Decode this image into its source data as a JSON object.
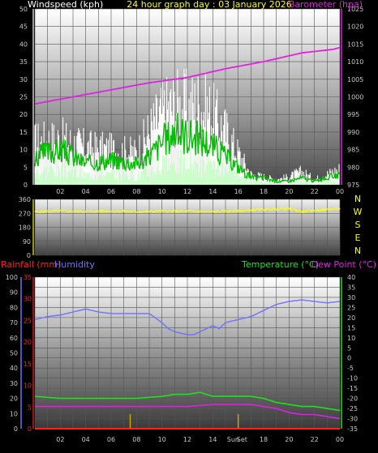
{
  "colors": {
    "background": "#000000",
    "axis_text": "#c8c8c8",
    "windspeed_label": "#ffffff",
    "title": "#ffff00",
    "barometer": "#e020e0",
    "wind_gust": "#ffffff",
    "wind_avg": "#00c000",
    "wind_min": "#c8ffc8",
    "wind_dir": "#ffff00",
    "compass": "#ffff00",
    "rainfall": "#ff2020",
    "humidity": "#7070ff",
    "temperature": "#20e020",
    "dew_point": "#e020e0",
    "sun_marker": "#d0a000"
  },
  "chart_data": [
    {
      "type": "line",
      "title": "24 hour graph day : 03 January 2026",
      "x_tick_labels": [
        "02",
        "04",
        "06",
        "08",
        "10",
        "12",
        "14",
        "16",
        "18",
        "20",
        "22",
        "00"
      ],
      "left_axis": {
        "label": "Windspeed (kph)",
        "range": [
          0,
          50
        ],
        "ticks": [
          "0",
          "5",
          "10",
          "15",
          "20",
          "25",
          "30",
          "35",
          "40",
          "45",
          "50"
        ]
      },
      "right_axis": {
        "label": "Barometer (hpa)",
        "range": [
          975,
          1025
        ],
        "ticks": [
          "975",
          "980",
          "985",
          "990",
          "995",
          "1000",
          "1005",
          "1010",
          "1015",
          "1020",
          "1025"
        ]
      },
      "grid": true,
      "series": [
        {
          "axis": "right",
          "x_hours": [
            0,
            3,
            6,
            9,
            12,
            15,
            18,
            21,
            23.5,
            24
          ],
          "values": [
            998,
            1000,
            1002,
            1004,
            1005.5,
            1008,
            1010,
            1012.5,
            1013.5,
            1014
          ]
        },
        {
          "axis": "left",
          "x_hours": [
            0,
            2,
            4,
            6,
            8,
            9,
            10,
            11,
            12,
            13,
            14,
            15,
            16,
            17,
            18,
            19,
            20,
            21,
            22,
            23,
            24
          ],
          "values": [
            16,
            17,
            14,
            13,
            12,
            20,
            27,
            30,
            29,
            30,
            26,
            20,
            12,
            4,
            3,
            2,
            3,
            5,
            2,
            4,
            6
          ]
        },
        {
          "axis": "left",
          "x_hours": [
            0,
            2,
            4,
            6,
            8,
            9,
            10,
            11,
            12,
            13,
            14,
            15,
            16,
            17,
            18,
            19,
            20,
            21,
            22,
            23,
            24
          ],
          "values": [
            8,
            10,
            6,
            7,
            6,
            8,
            12,
            15,
            14,
            13,
            11,
            8,
            5,
            2,
            2,
            1,
            1,
            2,
            1,
            2,
            3
          ]
        },
        {
          "axis": "left",
          "x_hours": [
            0,
            2,
            4,
            6,
            8,
            9,
            10,
            11,
            12,
            13,
            14,
            15,
            16,
            17,
            18,
            19,
            20,
            21,
            22,
            23,
            24
          ],
          "values": [
            4,
            5,
            3,
            3,
            3,
            4,
            6,
            7,
            7,
            6,
            5,
            4,
            3,
            1,
            1,
            0,
            0,
            1,
            0,
            1,
            1
          ]
        }
      ]
    },
    {
      "type": "scatter",
      "left_axis": {
        "range": [
          0,
          360
        ],
        "ticks": [
          "0",
          "90",
          "180",
          "270",
          "360"
        ]
      },
      "compass_labels": [
        "N",
        "W",
        "S",
        "E",
        "N"
      ],
      "x_hours": [
        0,
        2,
        4,
        6,
        8,
        10,
        12,
        14,
        16,
        18,
        20,
        21,
        22,
        23,
        24
      ],
      "values": [
        280,
        285,
        282,
        286,
        280,
        284,
        283,
        281,
        285,
        295,
        300,
        282,
        288,
        295,
        300
      ]
    },
    {
      "type": "line",
      "x_tick_labels": [
        "02",
        "04",
        "06",
        "08",
        "10",
        "12",
        "14",
        "Sun",
        "Set",
        "18",
        "20",
        "22",
        "00"
      ],
      "left_axis_humidity": {
        "label": "Humidity",
        "range": [
          0,
          100
        ],
        "ticks": [
          "0",
          "10",
          "20",
          "30",
          "40",
          "50",
          "60",
          "70",
          "80",
          "90",
          "100"
        ]
      },
      "left_axis_rainfall": {
        "label": "Rainfall (mm)",
        "range": [
          0,
          35
        ],
        "ticks": [
          "0",
          "5",
          "10",
          "15",
          "20",
          "25",
          "30",
          "35"
        ]
      },
      "right_axis": {
        "label": "Temperature (°C)",
        "label2": "Dew Point (°C)",
        "range": [
          -35,
          40
        ],
        "ticks": [
          "-35",
          "-30",
          "-25",
          "-20",
          "-15",
          "-10",
          "-5",
          "0",
          "5",
          "10",
          "15",
          "20",
          "25",
          "30",
          "35",
          "40"
        ]
      },
      "sun_markers_hours": [
        7.5,
        16
      ],
      "series": [
        {
          "axis": "humidity",
          "x_hours": [
            0,
            1,
            2,
            3,
            4,
            5,
            6,
            7,
            8,
            9,
            10,
            10.5,
            11,
            12,
            12.5,
            13,
            14,
            14.5,
            15,
            16,
            17,
            17.5,
            18,
            19,
            20,
            21,
            22,
            23,
            24
          ],
          "values": [
            72,
            74,
            75,
            77,
            79,
            77,
            76,
            76,
            76,
            76,
            70,
            66,
            64,
            62,
            62,
            64,
            68,
            66,
            70,
            72,
            74,
            76,
            78,
            82,
            84,
            85,
            84,
            83,
            84
          ]
        },
        {
          "axis": "temp",
          "x_hours": [
            0,
            2,
            4,
            6,
            8,
            10,
            11,
            12,
            13,
            14,
            15,
            16,
            17,
            18,
            19,
            20,
            21,
            22,
            23,
            24
          ],
          "values": [
            -19,
            -20,
            -20,
            -20,
            -20,
            -19,
            -18,
            -18,
            -17,
            -19,
            -19,
            -19,
            -19,
            -20,
            -22,
            -23,
            -24,
            -24,
            -25,
            -26
          ]
        },
        {
          "axis": "temp",
          "x_hours": [
            0,
            2,
            4,
            6,
            8,
            10,
            12,
            14,
            15,
            16,
            17,
            18,
            19,
            20,
            21,
            22,
            23,
            24
          ],
          "values": [
            -24,
            -24,
            -24,
            -24,
            -24,
            -24,
            -24,
            -23,
            -23,
            -23,
            -23,
            -24,
            -25,
            -27,
            -28,
            -28,
            -29,
            -30
          ]
        },
        {
          "axis": "rain",
          "x_hours": [
            0,
            24
          ],
          "values": [
            0,
            0
          ]
        }
      ]
    }
  ]
}
